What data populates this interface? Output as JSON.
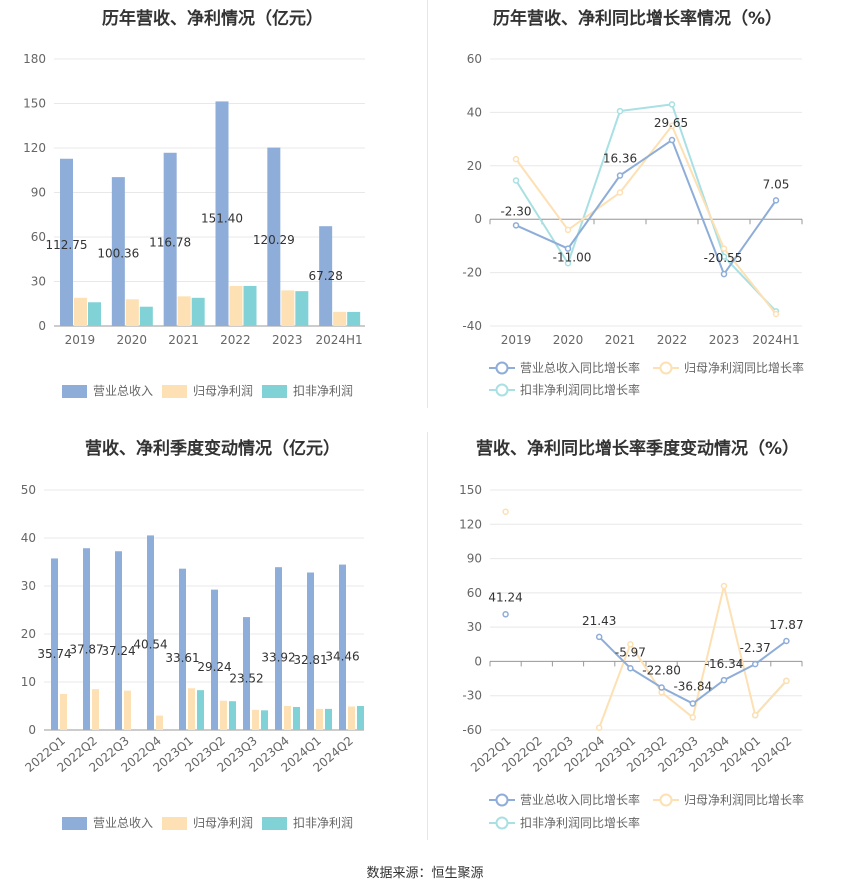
{
  "source": "数据来源：恒生聚源",
  "colors": {
    "revenue": "#8eadd8",
    "net": "#fde0b3",
    "deduct": "#80d2d6",
    "revenue_line": "#8eadd8",
    "net_line": "#fde0b3",
    "deduct_line": "#a8e0e3"
  },
  "chart_data": [
    {
      "type": "bar",
      "title": "历年营收、净利情况（亿元）",
      "categories": [
        "2019",
        "2020",
        "2021",
        "2022",
        "2023",
        "2024H1"
      ],
      "ylim": [
        0,
        180
      ],
      "yticks": [
        0,
        30,
        60,
        90,
        120,
        150,
        180
      ],
      "series": [
        {
          "name": "营业总收入",
          "values": [
            112.75,
            100.36,
            116.78,
            151.4,
            120.29,
            67.28
          ],
          "labels": [
            "112.75",
            "100.36",
            "116.78",
            "151.40",
            "120.29",
            "67.28"
          ]
        },
        {
          "name": "归母净利润",
          "values": [
            19,
            18,
            20,
            27,
            24,
            9.5
          ],
          "labels": []
        },
        {
          "name": "扣非净利润",
          "values": [
            16,
            13,
            19,
            27,
            23.5,
            9.5
          ],
          "labels": []
        }
      ],
      "legend": "bottom"
    },
    {
      "type": "line",
      "title": "历年营收、净利同比增长率情况（%）",
      "categories": [
        "2019",
        "2020",
        "2021",
        "2022",
        "2023",
        "2024H1"
      ],
      "ylim": [
        -40,
        60
      ],
      "yticks": [
        -40,
        -20,
        0,
        20,
        40,
        60
      ],
      "series": [
        {
          "name": "营业总收入同比增长率",
          "values": [
            -2.3,
            -11.0,
            16.36,
            29.65,
            -20.55,
            7.05
          ],
          "labels": [
            "-2.30",
            "-11.00",
            "16.36",
            "29.65",
            "-20.55",
            "7.05"
          ]
        },
        {
          "name": "归母净利润同比增长率",
          "values": [
            22.5,
            -4,
            10,
            35,
            -11,
            -35.5
          ],
          "labels": []
        },
        {
          "name": "扣非净利润同比增长率",
          "values": [
            14.5,
            -16.5,
            40.5,
            43,
            -14,
            -34.5
          ],
          "labels": []
        }
      ],
      "legend": "bottom"
    },
    {
      "type": "bar",
      "title": "营收、净利季度变动情况（亿元）",
      "categories": [
        "2022Q1",
        "2022Q2",
        "2022Q3",
        "2022Q4",
        "2023Q1",
        "2023Q2",
        "2023Q3",
        "2023Q4",
        "2024Q1",
        "2024Q2"
      ],
      "ylim": [
        0,
        50
      ],
      "yticks": [
        0,
        10,
        20,
        30,
        40,
        50
      ],
      "series": [
        {
          "name": "营业总收入",
          "values": [
            35.74,
            37.87,
            37.24,
            40.54,
            33.61,
            29.24,
            23.52,
            33.92,
            32.81,
            34.46
          ],
          "labels": [
            "35.74",
            "37.87",
            "37.24",
            "40.54",
            "33.61",
            "29.24",
            "23.52",
            "33.92",
            "32.81",
            "34.46"
          ]
        },
        {
          "name": "归母净利润",
          "values": [
            7.5,
            8.5,
            8.2,
            3.0,
            8.7,
            6.1,
            4.2,
            5.0,
            4.4,
            4.9
          ],
          "labels": []
        },
        {
          "name": "扣非净利润",
          "values": [
            null,
            null,
            null,
            null,
            8.3,
            6.0,
            4.1,
            4.8,
            4.4,
            5.0
          ],
          "labels": []
        }
      ],
      "legend": "bottom"
    },
    {
      "type": "line",
      "title": "营收、净利同比增长率季度变动情况（%）",
      "categories": [
        "2022Q1",
        "2022Q2",
        "2022Q3",
        "2022Q4",
        "2023Q1",
        "2023Q2",
        "2023Q3",
        "2023Q4",
        "2024Q1",
        "2024Q2"
      ],
      "ylim": [
        -60,
        150
      ],
      "yticks": [
        -60,
        -30,
        0,
        30,
        60,
        90,
        120,
        150
      ],
      "series": [
        {
          "name": "营业总收入同比增长率",
          "values": [
            41.24,
            null,
            null,
            21.43,
            -5.97,
            -22.8,
            -36.84,
            -16.34,
            -2.37,
            17.87
          ],
          "labels": [
            "41.24",
            "",
            "",
            "21.43",
            "-5.97",
            "-22.80",
            "-36.84",
            "-16.34",
            "-2.37",
            "17.87"
          ]
        },
        {
          "name": "归母净利润同比增长率",
          "values": [
            131,
            null,
            null,
            -58,
            15,
            -27,
            -49,
            66,
            -47,
            -17
          ],
          "labels": []
        },
        {
          "name": "扣非净利润同比增长率",
          "values": [
            null,
            null,
            null,
            null,
            null,
            null,
            null,
            null,
            -47,
            -17
          ],
          "labels": []
        }
      ],
      "legend": "bottom"
    }
  ]
}
